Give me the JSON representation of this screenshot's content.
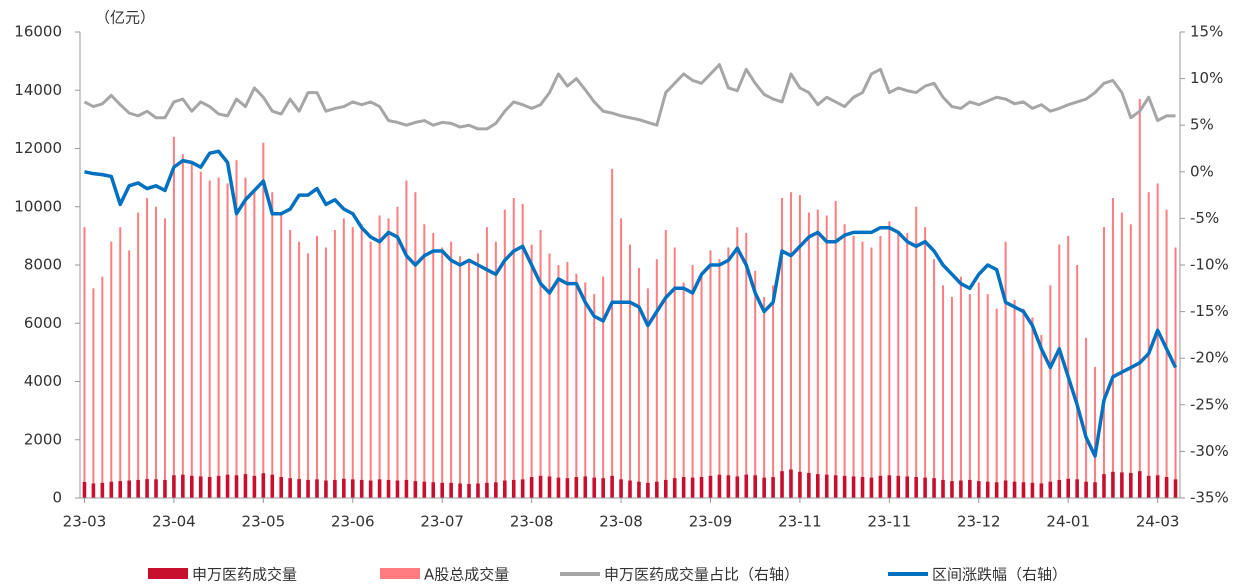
{
  "chart_data": {
    "type": "bar",
    "y_label": "（亿元）",
    "categories": [
      "23-03",
      null,
      null,
      null,
      null,
      null,
      null,
      null,
      null,
      null,
      "23-04",
      null,
      null,
      null,
      null,
      null,
      null,
      null,
      null,
      null,
      "23-05",
      null,
      null,
      null,
      null,
      null,
      null,
      null,
      null,
      null,
      "23-06",
      null,
      null,
      null,
      null,
      null,
      null,
      null,
      null,
      null,
      "23-07",
      null,
      null,
      null,
      null,
      null,
      null,
      null,
      null,
      null,
      "23-08",
      null,
      null,
      null,
      null,
      null,
      null,
      null,
      null,
      null,
      "23-08",
      null,
      null,
      null,
      null,
      null,
      null,
      null,
      null,
      null,
      "23-09",
      null,
      null,
      null,
      null,
      null,
      null,
      null,
      null,
      null,
      "23-11",
      null,
      null,
      null,
      null,
      null,
      null,
      null,
      null,
      null,
      "23-11",
      null,
      null,
      null,
      null,
      null,
      null,
      null,
      null,
      null,
      "23-12",
      null,
      null,
      null,
      null,
      null,
      null,
      null,
      null,
      null,
      "24-01",
      null,
      null,
      null,
      null,
      null,
      null,
      null,
      null,
      null,
      "24-03",
      null,
      null
    ],
    "ylim": [
      0,
      16000
    ],
    "yticks": [
      0,
      2000,
      4000,
      6000,
      8000,
      10000,
      12000,
      14000,
      16000
    ],
    "y2lim": [
      -35,
      15
    ],
    "y2ticks": [
      {
        "value": -35,
        "label": "-35%"
      },
      {
        "value": -30,
        "label": "-30%"
      },
      {
        "value": -25,
        "label": "-25%"
      },
      {
        "value": -20,
        "label": "-20%"
      },
      {
        "value": -15,
        "label": "-15%"
      },
      {
        "value": -10,
        "label": "-10%"
      },
      {
        "value": -5,
        "label": "-5%"
      },
      {
        "value": 0,
        "label": "0%"
      },
      {
        "value": 5,
        "label": "5%"
      },
      {
        "value": 10,
        "label": "10%"
      },
      {
        "value": 15,
        "label": "15%"
      }
    ],
    "series": [
      {
        "name": "申万医药成交量",
        "type": "bar",
        "color": "#c8102e",
        "values": [
          550,
          500,
          520,
          560,
          580,
          600,
          620,
          650,
          640,
          620,
          780,
          800,
          760,
          740,
          720,
          760,
          800,
          780,
          820,
          760,
          850,
          800,
          720,
          680,
          650,
          620,
          640,
          600,
          620,
          660,
          640,
          620,
          600,
          640,
          620,
          600,
          620,
          580,
          560,
          540,
          520,
          520,
          500,
          480,
          500,
          520,
          540,
          600,
          620,
          640,
          720,
          760,
          740,
          700,
          680,
          720,
          740,
          700,
          680,
          760,
          640,
          600,
          560,
          520,
          560,
          620,
          680,
          720,
          700,
          720,
          760,
          800,
          780,
          740,
          800,
          780,
          700,
          720,
          920,
          980,
          900,
          860,
          820,
          800,
          780,
          760,
          740,
          720,
          700,
          760,
          780,
          760,
          740,
          720,
          700,
          680,
          620,
          580,
          600,
          620,
          580,
          560,
          540,
          600,
          560,
          540,
          520,
          500,
          560,
          620,
          660,
          640,
          560,
          540,
          820,
          900,
          880,
          860,
          920,
          760,
          780,
          720,
          640
        ]
      },
      {
        "name": "A股总成交量",
        "type": "bar",
        "color": "#ff7c80",
        "values": [
          9300,
          7200,
          7600,
          8800,
          9300,
          8500,
          9800,
          10300,
          10000,
          9600,
          12400,
          11800,
          11500,
          11200,
          10900,
          11000,
          10800,
          11600,
          11000,
          10600,
          12200,
          10500,
          9800,
          9200,
          8800,
          8400,
          9000,
          8600,
          9200,
          9600,
          9300,
          9400,
          8800,
          9700,
          9600,
          10000,
          10900,
          10500,
          9400,
          9100,
          8600,
          8800,
          8300,
          8100,
          8400,
          9300,
          8800,
          9900,
          10300,
          10100,
          8700,
          9200,
          8400,
          8000,
          8100,
          7700,
          7400,
          7000,
          7600,
          11300,
          9600,
          8700,
          7900,
          7200,
          8200,
          9200,
          8600,
          7400,
          8000,
          7700,
          8500,
          8200,
          8600,
          9300,
          9100,
          7800,
          6900,
          7300,
          10300,
          10500,
          10400,
          9800,
          9900,
          9700,
          10200,
          9400,
          9000,
          8800,
          8600,
          9000,
          9500,
          9100,
          9100,
          10000,
          9300,
          8200,
          7300,
          6900,
          7600,
          7000,
          7400,
          7000,
          6500,
          8800,
          6800,
          6500,
          6200,
          5600,
          7300,
          8700,
          9000,
          8000,
          5500,
          4500,
          9300,
          10300,
          9800,
          9400,
          13700,
          10500,
          10800,
          9900,
          8600
        ]
      },
      {
        "name": "申万医药成交量占比（右轴）",
        "type": "line",
        "axis": "y2",
        "color": "#a6a6a6",
        "values": [
          7.5,
          7,
          7.3,
          8.2,
          7.2,
          6.3,
          6,
          6.5,
          5.8,
          5.8,
          7.5,
          7.8,
          6.5,
          7.5,
          7,
          6.2,
          6,
          7.8,
          7,
          9,
          8,
          6.5,
          6.2,
          7.8,
          6.5,
          8.5,
          8.5,
          6.5,
          6.8,
          7,
          7.5,
          7.2,
          7.5,
          7,
          5.5,
          5.3,
          5,
          5.3,
          5.5,
          5,
          5.3,
          5.2,
          4.8,
          5,
          4.6,
          4.6,
          5.2,
          6.5,
          7.5,
          7.2,
          6.8,
          7.2,
          8.5,
          10.5,
          9.2,
          10,
          8.8,
          7.5,
          6.5,
          6.3,
          6,
          5.8,
          5.6,
          5.3,
          5,
          8.5,
          9.5,
          10.5,
          9.8,
          9.5,
          10.5,
          11.5,
          9,
          8.7,
          11,
          9.5,
          8.3,
          7.8,
          7.5,
          10.5,
          9,
          8.5,
          7.2,
          8,
          7.5,
          7,
          8,
          8.5,
          10.5,
          11,
          8.5,
          9,
          8.7,
          8.5,
          9.2,
          9.5,
          8,
          7,
          6.8,
          7.5,
          7.2,
          7.6,
          8,
          7.8,
          7.3,
          7.5,
          6.8,
          7.2,
          6.5,
          6.8,
          7.2,
          7.5,
          7.8,
          8.5,
          9.5,
          9.8,
          8.5,
          5.8,
          6.5,
          8,
          5.5,
          6,
          6
        ]
      },
      {
        "name": "区间涨跌幅（右轴）",
        "type": "line",
        "axis": "y2",
        "color": "#0070c0",
        "values": [
          0,
          -0.2,
          -0.3,
          -0.5,
          -3.5,
          -1.5,
          -1.2,
          -1.8,
          -1.5,
          -2,
          0.5,
          1.2,
          1,
          0.5,
          2,
          2.2,
          1,
          -4.5,
          -3,
          -2,
          -1,
          -4.5,
          -4.5,
          -4,
          -2.5,
          -2.5,
          -1.8,
          -3.5,
          -3,
          -4,
          -4.5,
          -6,
          -7,
          -7.5,
          -6.5,
          -7,
          -9,
          -10,
          -9,
          -8.5,
          -8.5,
          -9.5,
          -10,
          -9.5,
          -10,
          -10.5,
          -11,
          -9.5,
          -8.5,
          -8,
          -10,
          -12,
          -13,
          -11.5,
          -12,
          -12,
          -14,
          -15.5,
          -16,
          -14,
          -14,
          -14,
          -14.5,
          -16.5,
          -15,
          -13.5,
          -12.5,
          -12.5,
          -13,
          -11,
          -10,
          -10,
          -9.5,
          -8.2,
          -10,
          -13,
          -15,
          -14,
          -8.5,
          -9,
          -8,
          -7,
          -6.5,
          -7.5,
          -7.5,
          -6.8,
          -6.5,
          -6.5,
          -6.5,
          -6,
          -6,
          -6.5,
          -7.5,
          -8,
          -7.5,
          -8.5,
          -10,
          -11,
          -12,
          -12.5,
          -11,
          -10,
          -10.5,
          -14,
          -14.5,
          -15,
          -16.5,
          -19,
          -21,
          -19,
          -22,
          -25,
          -28.5,
          -30.5,
          -24.5,
          -22,
          -21.5,
          -21,
          -20.5,
          -19.5,
          -17,
          -19,
          -21
        ]
      }
    ]
  }
}
